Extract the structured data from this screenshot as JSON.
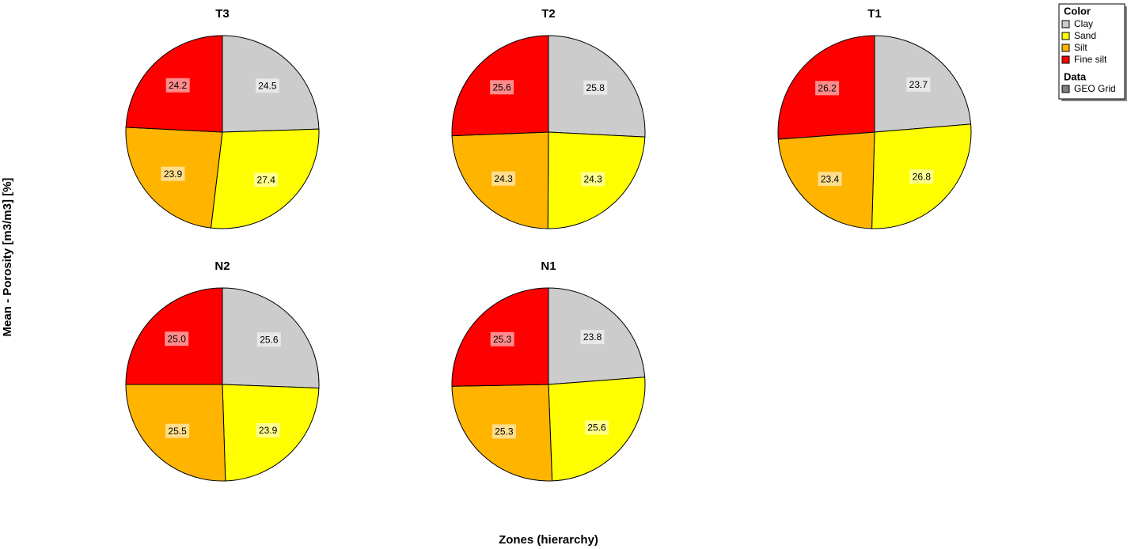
{
  "chart_data": [
    {
      "type": "pie",
      "title": "T3",
      "categories": [
        "Clay",
        "Sand",
        "Silt",
        "Fine silt"
      ],
      "values": [
        24.5,
        27.4,
        23.9,
        24.2
      ],
      "value_labels": [
        "24.5",
        "27.4",
        "23.9",
        "24.2"
      ],
      "colors": [
        "#cccccc",
        "#ffff00",
        "#ffb400",
        "#ff0000"
      ]
    },
    {
      "type": "pie",
      "title": "T2",
      "categories": [
        "Clay",
        "Sand",
        "Silt",
        "Fine silt"
      ],
      "values": [
        25.8,
        24.3,
        24.3,
        25.6
      ],
      "value_labels": [
        "25.8",
        "24.3",
        "24.3",
        "25.6"
      ],
      "colors": [
        "#cccccc",
        "#ffff00",
        "#ffb400",
        "#ff0000"
      ]
    },
    {
      "type": "pie",
      "title": "T1",
      "categories": [
        "Clay",
        "Sand",
        "Silt",
        "Fine silt"
      ],
      "values": [
        23.7,
        26.8,
        23.4,
        26.2
      ],
      "value_labels": [
        "23.7",
        "26.8",
        "23.4",
        "26.2"
      ],
      "colors": [
        "#cccccc",
        "#ffff00",
        "#ffb400",
        "#ff0000"
      ]
    },
    {
      "type": "pie",
      "title": "N2",
      "categories": [
        "Clay",
        "Sand",
        "Silt",
        "Fine silt"
      ],
      "values": [
        25.6,
        23.9,
        25.5,
        25.0
      ],
      "value_labels": [
        "25.6",
        "23.9",
        "25.5",
        "25.0"
      ],
      "colors": [
        "#cccccc",
        "#ffff00",
        "#ffb400",
        "#ff0000"
      ]
    },
    {
      "type": "pie",
      "title": "N1",
      "categories": [
        "Clay",
        "Sand",
        "Silt",
        "Fine silt"
      ],
      "values": [
        23.8,
        25.6,
        25.3,
        25.3
      ],
      "value_labels": [
        "23.8",
        "25.6",
        "25.3",
        "25.3"
      ],
      "colors": [
        "#cccccc",
        "#ffff00",
        "#ffb400",
        "#ff0000"
      ]
    }
  ],
  "x_label": "Zones (hierarchy)",
  "y_label": "Mean - Porosity [m3/m3] [%]",
  "legend": {
    "color_title": "Color",
    "data_title": "Data",
    "data_entry": "GEO Grid",
    "data_color": "#808080"
  }
}
